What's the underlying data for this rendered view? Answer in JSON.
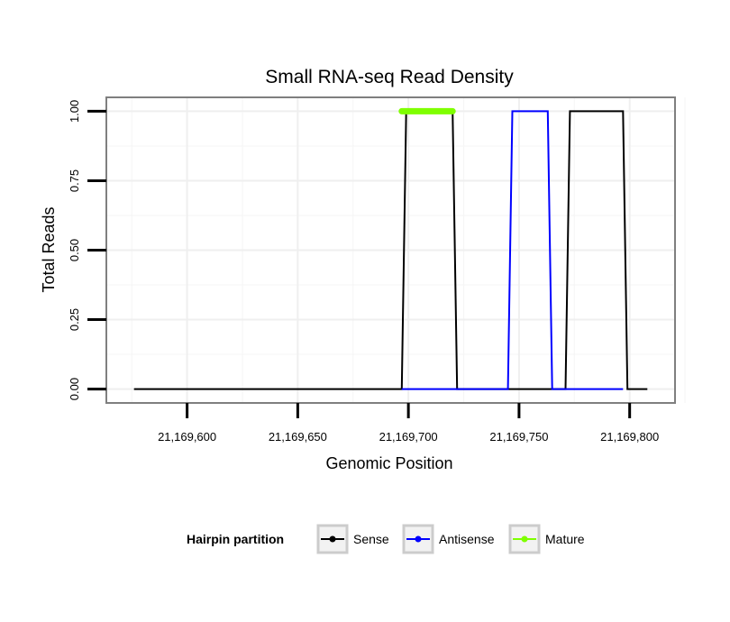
{
  "chart_data": {
    "type": "line",
    "title": "Small RNA-seq Read Density",
    "xlabel": "Genomic Position",
    "ylabel": "Total Reads",
    "xlim": [
      21169563.5,
      21169820.5
    ],
    "ylim": [
      -0.05,
      1.05
    ],
    "x_ticks": [
      {
        "value": 21169600,
        "label": "21,169,600"
      },
      {
        "value": 21169650,
        "label": "21,169,650"
      },
      {
        "value": 21169700,
        "label": "21,169,700"
      },
      {
        "value": 21169750,
        "label": "21,169,750"
      },
      {
        "value": 21169800,
        "label": "21,169,800"
      }
    ],
    "y_ticks": [
      {
        "value": 0.0,
        "label": "0.00"
      },
      {
        "value": 0.25,
        "label": "0.25"
      },
      {
        "value": 0.5,
        "label": "0.50"
      },
      {
        "value": 0.75,
        "label": "0.75"
      },
      {
        "value": 1.0,
        "label": "1.00"
      }
    ],
    "grid": true,
    "legend_position": "bottom",
    "legend_title": "Hairpin partition",
    "series": [
      {
        "name": "Sense",
        "color": "#000000",
        "width": 2,
        "x": [
          21169576,
          21169697,
          21169699,
          21169720,
          21169722,
          21169771,
          21169773,
          21169797,
          21169799,
          21169808
        ],
        "y": [
          0,
          0,
          1,
          1,
          0,
          0,
          1,
          1,
          0,
          0
        ]
      },
      {
        "name": "Antisense",
        "color": "#0000ff",
        "width": 2,
        "x": [
          21169697,
          21169745,
          21169747,
          21169763,
          21169765,
          21169797
        ],
        "y": [
          0,
          0,
          1,
          1,
          0,
          0
        ]
      },
      {
        "name": "Mature",
        "color": "#7fff00",
        "width": 7,
        "x": [
          21169697,
          21169720
        ],
        "y": [
          1,
          1
        ]
      }
    ]
  }
}
